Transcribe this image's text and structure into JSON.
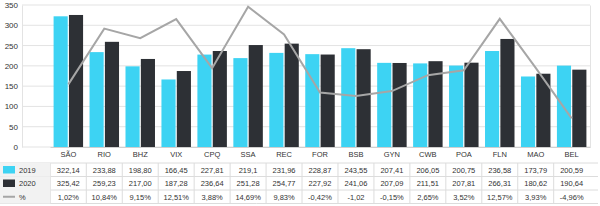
{
  "chart_data": {
    "type": "bar",
    "categories": [
      "SÃO",
      "RIO",
      "BHZ",
      "VIX",
      "CPQ",
      "SSA",
      "REC",
      "FOR",
      "BSB",
      "GYN",
      "CWB",
      "POA",
      "FLN",
      "MAO",
      "BEL"
    ],
    "series": [
      {
        "name": "2019",
        "color": "#3dd3f3",
        "values": [
          322.14,
          233.88,
          198.8,
          166.45,
          227.81,
          219.1,
          231.96,
          228.87,
          243.55,
          207.41,
          206.05,
          200.75,
          236.58,
          173.79,
          200.59
        ],
        "value_labels": [
          "322,14",
          "233,88",
          "198,80",
          "166,45",
          "227,81",
          "219,1",
          "231,96",
          "228,87",
          "243,55",
          "207,41",
          "206,05",
          "200,75",
          "236,58",
          "173,79",
          "200,59"
        ]
      },
      {
        "name": "2020",
        "color": "#2d3035",
        "values": [
          325.42,
          259.23,
          217.0,
          187.28,
          236.64,
          251.28,
          254.77,
          227.92,
          241.06,
          207.09,
          211.51,
          207.81,
          266.31,
          180.62,
          190.64
        ],
        "value_labels": [
          "325,42",
          "259,23",
          "217,00",
          "187,28",
          "236,64",
          "251,28",
          "254,77",
          "227,92",
          "241,06",
          "207,09",
          "211,51",
          "207,81",
          "266,31",
          "180,62",
          "190,64"
        ]
      },
      {
        "name": "%",
        "type": "line",
        "axis": "y2",
        "color": "#a6a6a6",
        "values": [
          1.02,
          10.84,
          9.15,
          12.51,
          3.88,
          14.69,
          9.83,
          -0.42,
          -1.02,
          -0.15,
          2.65,
          3.52,
          12.57,
          3.93,
          -4.96
        ],
        "value_labels": [
          "1,02%",
          "10,84%",
          "9,15%",
          "12,51%",
          "3,88%",
          "14,69%",
          "9,83%",
          "-0,42%",
          "-1,02",
          "-0,15%",
          "2,65%",
          "3,52%",
          "12,57%",
          "3,93%",
          "-4,96%"
        ]
      }
    ],
    "ylim": [
      0,
      350
    ],
    "yticks": [
      0,
      50,
      100,
      150,
      200,
      250,
      300,
      350
    ],
    "y2lim": [
      -10,
      15
    ],
    "y2ticks": [],
    "grid": true,
    "tick_labels": "y"
  }
}
